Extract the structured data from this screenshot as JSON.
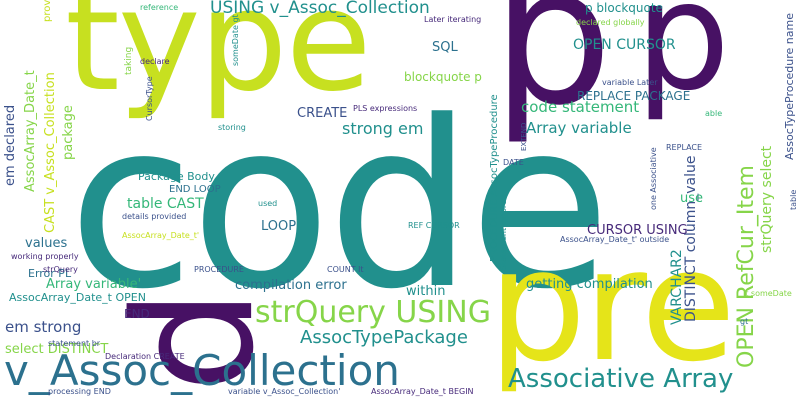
{
  "colors": {
    "background": "#ffffff",
    "lime": "#c7e020",
    "yellow": "#e5e419",
    "purple": "#471164",
    "indigo": "#3b518b",
    "blue": "#2c718e",
    "teal": "#21908d",
    "green": "#35b779",
    "light_green": "#86d549",
    "violet": "#472a7a"
  },
  "words": [
    "code",
    "type",
    "p",
    "p",
    "p",
    "pre",
    "v_Assoc_Collection",
    "Associative Array",
    "strQuery USING",
    "USING v_Assoc_Collection",
    "OPEN RefCur_Item",
    "AssocTypePackage",
    "strong em",
    "code statement",
    "Array variable",
    "OPEN CURSOR",
    "REPLACE PACKAGE",
    "blockquote p",
    "p blockquote",
    "CREATE",
    "SQL",
    "em declared",
    "AssocArray_Date_t",
    "CAST v_Assoc_Collection",
    "package",
    "Package Body",
    "END LOOP",
    "table CAST",
    "values",
    "LOOP",
    "CURSOR USING",
    "VARCHAR2",
    "DISTINCT column_value",
    "strQuery select",
    "use",
    "compilation error",
    "getting compilation",
    "within",
    "em strong",
    "select DISTINCT",
    "Array variable'",
    "AssocArray_Date_t OPEN",
    "END",
    "Error PL",
    "AssocTypeProcedure name",
    "PROCEDURE AssocTypeProcedure",
    "provided",
    "reference",
    "someDate gt",
    "Later iterating",
    "declared globally",
    "taking",
    "declare",
    "variable Later",
    "able",
    "CursorType",
    "PLS expressions",
    "storing",
    "EXTEND",
    "DATE",
    "one Associative",
    "REPLACE",
    "table",
    "Statement ignored",
    "details provided",
    "used",
    "AssocArray_Date_t'",
    "REF CURSOR",
    "AssocArray_Date_t' outside",
    "working properly",
    "strQuery",
    "PROCEDURE",
    "COUNT lt",
    "lt someDate",
    "gt",
    "statement br",
    "Declaration CREATE",
    "processing END",
    "variable v_Assoc_Collection'",
    "AssocArray_Date_t BEGIN"
  ]
}
